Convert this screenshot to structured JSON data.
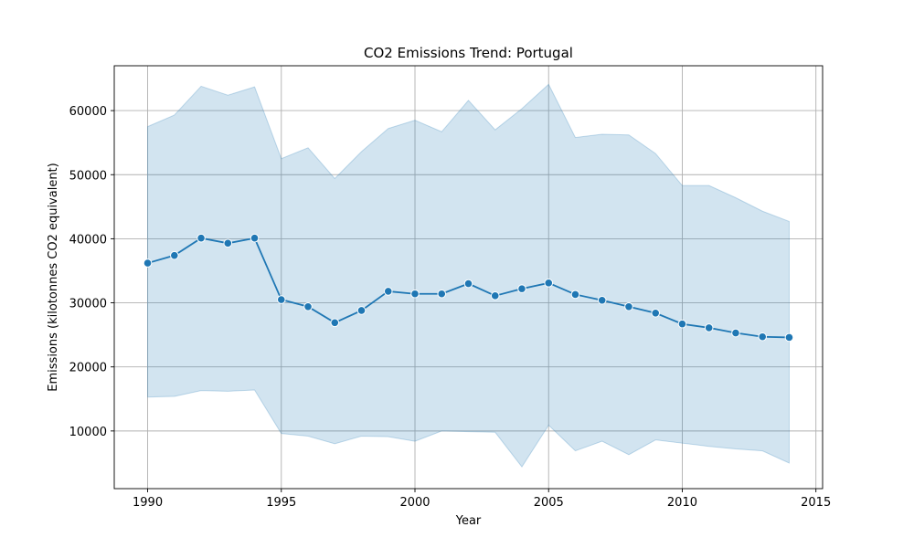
{
  "chart_data": {
    "type": "line",
    "title": "CO2 Emissions Trend: Portugal",
    "xlabel": "Year",
    "ylabel": "Emissions (kilotonnes CO2 equivalent)",
    "xlim": [
      1988.75,
      2015.25
    ],
    "ylim": [
      1000,
      67000
    ],
    "xticks": [
      1990,
      1995,
      2000,
      2005,
      2010,
      2015
    ],
    "yticks": [
      10000,
      20000,
      30000,
      40000,
      50000,
      60000
    ],
    "grid": true,
    "x": [
      1990,
      1991,
      1992,
      1993,
      1994,
      1995,
      1996,
      1997,
      1998,
      1999,
      2000,
      2001,
      2002,
      2003,
      2004,
      2005,
      2006,
      2007,
      2008,
      2009,
      2010,
      2011,
      2012,
      2013,
      2014
    ],
    "series": [
      {
        "values": [
          36200,
          37400,
          40100,
          39300,
          40100,
          30500,
          29400,
          26900,
          28800,
          31800,
          31400,
          31400,
          33000,
          31100,
          32200,
          33100,
          31300,
          30400,
          29400,
          28400,
          26700,
          26100,
          25300,
          24700,
          24600
        ],
        "band_upper": [
          57500,
          59300,
          63800,
          62400,
          63700,
          52500,
          54200,
          49400,
          53600,
          57200,
          58500,
          56700,
          61600,
          57000,
          60300,
          64100,
          55800,
          56300,
          56200,
          53300,
          48300,
          48300,
          46400,
          44300,
          42700
        ],
        "band_lower": [
          15300,
          15400,
          16300,
          16200,
          16400,
          9600,
          9200,
          8000,
          9200,
          9100,
          8400,
          10000,
          9900,
          9800,
          4400,
          10900,
          6900,
          8400,
          6300,
          8600,
          8100,
          7600,
          7200,
          6900,
          5000
        ],
        "color": "#1f77b4",
        "band_color": "#1f77b4"
      }
    ]
  }
}
